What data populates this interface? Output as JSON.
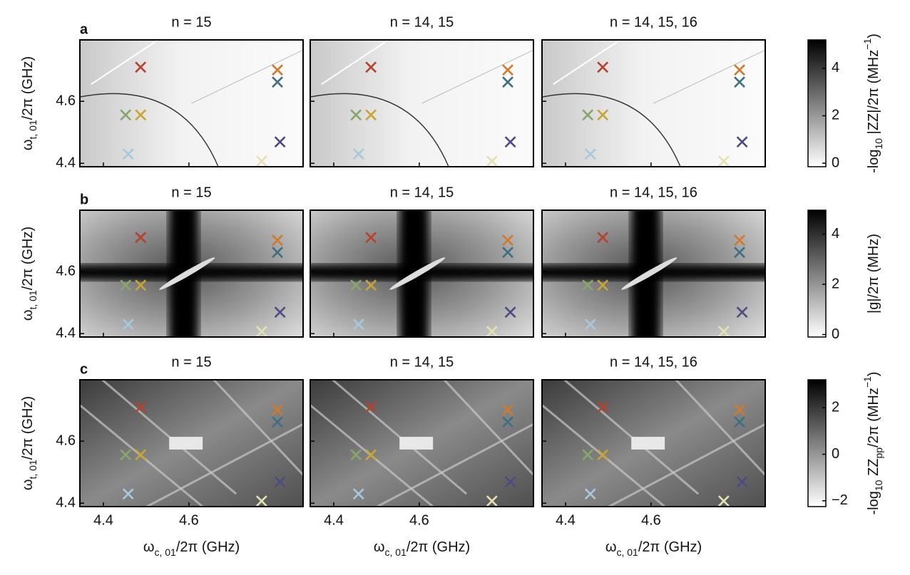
{
  "chart_data": [
    {
      "type": "heatmap",
      "panel_label": "a",
      "titles": [
        "n = 15",
        "n = 14, 15",
        "n = 14, 15, 16"
      ],
      "xlim": [
        4.345,
        4.867
      ],
      "xticks": [
        4.4,
        4.6
      ],
      "ylim": [
        4.389,
        4.798
      ],
      "yticks": [
        4.4,
        4.6
      ],
      "ylabel": [
        {
          "text": "ω"
        },
        {
          "text": "t, 01",
          "shift": "sub"
        },
        {
          "text": "/2π (GHz)"
        }
      ],
      "colorbar": {
        "lim": [
          -0.15,
          5.2
        ],
        "ticks": [
          0,
          2,
          4
        ],
        "label": [
          {
            "text": "-log"
          },
          {
            "text": "10",
            "shift": "sub"
          },
          {
            "text": " |ZZ|/2π (MHz"
          },
          {
            "text": "−1",
            "shift": "super"
          },
          {
            "text": ")"
          }
        ]
      },
      "markers": {
        "x": [
          4.487,
          4.807,
          4.807,
          4.452,
          4.487,
          4.813,
          4.458,
          4.77
        ],
        "y": [
          4.71,
          4.701,
          4.662,
          4.556,
          4.556,
          4.469,
          4.43,
          4.407
        ],
        "colors": [
          "#b5412e",
          "#d07a2a",
          "#3f6f80",
          "#8aa56a",
          "#c9a533",
          "#4d4b80",
          "#a8c8dc",
          "#e4e2b4"
        ]
      }
    },
    {
      "type": "heatmap",
      "panel_label": "b",
      "titles": [
        "n = 15",
        "n = 14, 15",
        "n = 14, 15, 16"
      ],
      "xlim": [
        4.345,
        4.867
      ],
      "xticks": [
        4.4,
        4.6
      ],
      "ylim": [
        4.389,
        4.798
      ],
      "yticks": [
        4.4,
        4.6
      ],
      "ylabel": [
        {
          "text": "ω"
        },
        {
          "text": "t, 01",
          "shift": "sub"
        },
        {
          "text": "/2π (GHz)"
        }
      ],
      "colorbar": {
        "lim": [
          -0.1,
          4.95
        ],
        "ticks": [
          0,
          2,
          4
        ],
        "label": [
          {
            "text": "|g|/2π (MHz)"
          }
        ]
      },
      "markers": {
        "x": [
          4.487,
          4.807,
          4.807,
          4.452,
          4.487,
          4.813,
          4.458,
          4.77
        ],
        "y": [
          4.71,
          4.701,
          4.662,
          4.556,
          4.556,
          4.469,
          4.43,
          4.407
        ],
        "colors": [
          "#b5412e",
          "#d07a2a",
          "#3f6f80",
          "#8aa56a",
          "#c9a533",
          "#4d4b80",
          "#a8c8dc",
          "#e4e2b4"
        ]
      }
    },
    {
      "type": "heatmap",
      "panel_label": "c",
      "titles": [
        "n = 15",
        "n = 14, 15",
        "n = 14, 15, 16"
      ],
      "xlim": [
        4.345,
        4.867
      ],
      "xticks": [
        4.4,
        4.6
      ],
      "ylim": [
        4.389,
        4.798
      ],
      "yticks": [
        4.4,
        4.6
      ],
      "xlabel": [
        {
          "text": "ω"
        },
        {
          "text": "c, 01",
          "shift": "sub"
        },
        {
          "text": "/2π (GHz)"
        }
      ],
      "ylabel": [
        {
          "text": "ω"
        },
        {
          "text": "t, 01",
          "shift": "sub"
        },
        {
          "text": "/2π (GHz)"
        }
      ],
      "colorbar": {
        "lim": [
          -2.25,
          3.2
        ],
        "ticks": [
          {
            "value": -2,
            "label": "−2"
          },
          0,
          2
        ],
        "label": [
          {
            "text": "-log"
          },
          {
            "text": "10",
            "shift": "sub"
          },
          {
            "text": " ZZ"
          },
          {
            "text": "pp",
            "shift": "sub"
          },
          {
            "text": "/2π (MHz"
          },
          {
            "text": "−1",
            "shift": "super"
          },
          {
            "text": ")"
          }
        ]
      },
      "markers": {
        "x": [
          4.487,
          4.807,
          4.807,
          4.452,
          4.487,
          4.813,
          4.458,
          4.77
        ],
        "y": [
          4.71,
          4.701,
          4.662,
          4.556,
          4.556,
          4.469,
          4.43,
          4.407
        ],
        "colors": [
          "#b5412e",
          "#d07a2a",
          "#3f6f80",
          "#8aa56a",
          "#c9a533",
          "#4d4b80",
          "#a8c8dc",
          "#e4e2b4"
        ]
      }
    }
  ]
}
